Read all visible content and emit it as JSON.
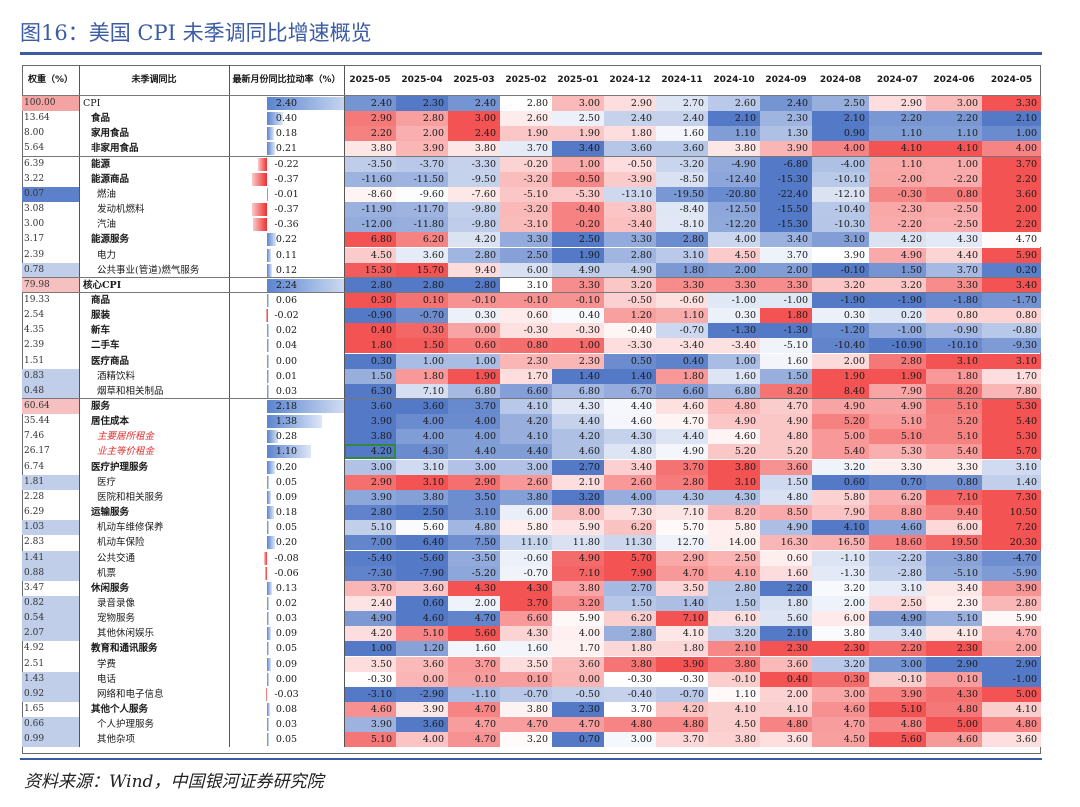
{
  "title": "图16：美国 CPI 未季调同比增速概览",
  "source": "资料来源：Wind，中国银河证券研究院",
  "colors": {
    "red": "#f24a4a",
    "blue": "#4a72c4",
    "bar_pos": "#5b84d0",
    "bar_neg": "#ef2f2f"
  },
  "chart_data": {
    "type": "table",
    "columns": [
      "权重（%）",
      "未季调同比",
      "最新月份同比拉动率（%）",
      "2025-05",
      "2025-04",
      "2025-03",
      "2025-02",
      "2025-01",
      "2024-12",
      "2024-11",
      "2024-10",
      "2024-09",
      "2024-08",
      "2024-07",
      "2024-06",
      "2024-05"
    ],
    "rows": [
      {
        "weight": "100.00",
        "name": "CPI",
        "level": 0,
        "bold": false,
        "contrib": "2.40",
        "values": [
          "2.40",
          "2.30",
          "2.40",
          "2.80",
          "3.00",
          "2.90",
          "2.70",
          "2.60",
          "2.40",
          "2.50",
          "2.90",
          "3.00",
          "3.30"
        ]
      },
      {
        "weight": "13.64",
        "name": "食品",
        "level": 1,
        "bold": true,
        "contrib": "0.40",
        "values": [
          "2.90",
          "2.80",
          "3.00",
          "2.60",
          "2.50",
          "2.40",
          "2.40",
          "2.10",
          "2.30",
          "2.10",
          "2.20",
          "2.20",
          "2.10"
        ]
      },
      {
        "weight": "8.00",
        "name": "家用食品",
        "level": 1,
        "bold": true,
        "contrib": "0.18",
        "values": [
          "2.20",
          "2.00",
          "2.40",
          "1.90",
          "1.90",
          "1.80",
          "1.60",
          "1.10",
          "1.30",
          "0.90",
          "1.10",
          "1.10",
          "1.00"
        ]
      },
      {
        "weight": "5.64",
        "name": "非家用食品",
        "level": 1,
        "bold": true,
        "contrib": "0.21",
        "values": [
          "3.80",
          "3.90",
          "3.80",
          "3.70",
          "3.40",
          "3.60",
          "3.60",
          "3.80",
          "3.90",
          "4.00",
          "4.10",
          "4.10",
          "4.00"
        ]
      },
      {
        "weight": "6.39",
        "name": "能源",
        "level": 1,
        "bold": true,
        "contrib": "-0.22",
        "values": [
          "-3.50",
          "-3.70",
          "-3.30",
          "-0.20",
          "1.00",
          "-0.50",
          "-3.20",
          "-4.90",
          "-6.80",
          "-4.00",
          "1.10",
          "1.00",
          "3.70"
        ]
      },
      {
        "weight": "3.22",
        "name": "能源商品",
        "level": 1,
        "bold": true,
        "contrib": "-0.37",
        "values": [
          "-11.60",
          "-11.50",
          "-9.50",
          "-3.20",
          "-0.50",
          "-3.90",
          "-8.50",
          "-12.40",
          "-15.30",
          "-10.10",
          "-2.00",
          "-2.20",
          "2.20"
        ]
      },
      {
        "weight": "0.07",
        "name": "燃油",
        "level": 2,
        "bold": false,
        "contrib": "-0.01",
        "values": [
          "-8.60",
          "-9.60",
          "-7.60",
          "-5.10",
          "-5.30",
          "-13.10",
          "-19.50",
          "-20.80",
          "-22.40",
          "-12.10",
          "-0.30",
          "0.80",
          "3.60"
        ]
      },
      {
        "weight": "3.08",
        "name": "发动机燃料",
        "level": 2,
        "bold": false,
        "contrib": "-0.37",
        "values": [
          "-11.90",
          "-11.70",
          "-9.80",
          "-3.20",
          "-0.40",
          "-3.80",
          "-8.40",
          "-12.50",
          "-15.50",
          "-10.40",
          "-2.30",
          "-2.50",
          "2.00"
        ]
      },
      {
        "weight": "3.00",
        "name": "汽油",
        "level": 2,
        "bold": false,
        "contrib": "-0.36",
        "values": [
          "-12.00",
          "-11.80",
          "-9.80",
          "-3.10",
          "-0.20",
          "-3.40",
          "-8.10",
          "-12.20",
          "-15.30",
          "-10.30",
          "-2.20",
          "-2.50",
          "2.20"
        ]
      },
      {
        "weight": "3.17",
        "name": "能源服务",
        "level": 1,
        "bold": true,
        "contrib": "0.22",
        "values": [
          "6.80",
          "6.20",
          "4.20",
          "3.30",
          "2.50",
          "3.30",
          "2.80",
          "4.00",
          "3.40",
          "3.10",
          "4.20",
          "4.30",
          "4.70"
        ]
      },
      {
        "weight": "2.39",
        "name": "电力",
        "level": 2,
        "bold": false,
        "contrib": "0.11",
        "values": [
          "4.50",
          "3.60",
          "2.80",
          "2.50",
          "1.90",
          "2.80",
          "3.10",
          "4.50",
          "3.70",
          "3.90",
          "4.90",
          "4.40",
          "5.90"
        ]
      },
      {
        "weight": "0.78",
        "name": "公共事业(管道)燃气服务",
        "level": 2,
        "bold": false,
        "contrib": "0.12",
        "values": [
          "15.30",
          "15.70",
          "9.40",
          "6.00",
          "4.90",
          "4.90",
          "1.80",
          "2.00",
          "2.00",
          "-0.10",
          "1.50",
          "3.70",
          "0.20"
        ]
      },
      {
        "weight": "79.98",
        "name": "核心CPI",
        "level": 0,
        "bold": true,
        "contrib": "2.24",
        "values": [
          "2.80",
          "2.80",
          "2.80",
          "3.10",
          "3.30",
          "3.20",
          "3.30",
          "3.30",
          "3.30",
          "3.20",
          "3.20",
          "3.30",
          "3.40"
        ]
      },
      {
        "weight": "19.33",
        "name": "商品",
        "level": 1,
        "bold": true,
        "contrib": "0.06",
        "values": [
          "0.30",
          "0.10",
          "-0.10",
          "-0.10",
          "-0.10",
          "-0.50",
          "-0.60",
          "-1.00",
          "-1.00",
          "-1.90",
          "-1.90",
          "-1.80",
          "-1.70"
        ]
      },
      {
        "weight": "2.54",
        "name": "服装",
        "level": 1,
        "bold": true,
        "contrib": "-0.02",
        "values": [
          "-0.90",
          "-0.70",
          "0.30",
          "0.60",
          "0.40",
          "1.20",
          "1.10",
          "0.30",
          "1.80",
          "0.30",
          "0.20",
          "0.80",
          "0.80"
        ]
      },
      {
        "weight": "4.35",
        "name": "新车",
        "level": 1,
        "bold": true,
        "contrib": "0.02",
        "values": [
          "0.40",
          "0.30",
          "0.00",
          "-0.30",
          "-0.30",
          "-0.40",
          "-0.70",
          "-1.30",
          "-1.30",
          "-1.20",
          "-1.00",
          "-0.90",
          "-0.80"
        ]
      },
      {
        "weight": "2.39",
        "name": "二手车",
        "level": 1,
        "bold": true,
        "contrib": "0.04",
        "values": [
          "1.80",
          "1.50",
          "0.60",
          "0.80",
          "1.00",
          "-3.30",
          "-3.40",
          "-3.40",
          "-5.10",
          "-10.40",
          "-10.90",
          "-10.10",
          "-9.30"
        ]
      },
      {
        "weight": "1.51",
        "name": "医疗商品",
        "level": 1,
        "bold": true,
        "contrib": "0.00",
        "values": [
          "0.30",
          "1.00",
          "1.00",
          "2.30",
          "2.30",
          "0.50",
          "0.40",
          "1.00",
          "1.60",
          "2.00",
          "2.80",
          "3.10",
          "3.10"
        ]
      },
      {
        "weight": "0.83",
        "name": "酒精饮料",
        "level": 2,
        "bold": false,
        "contrib": "0.01",
        "values": [
          "1.50",
          "1.80",
          "1.90",
          "1.70",
          "1.40",
          "1.40",
          "1.80",
          "1.60",
          "1.50",
          "1.90",
          "1.90",
          "1.80",
          "1.70"
        ]
      },
      {
        "weight": "0.48",
        "name": "烟草和相关制品",
        "level": 2,
        "bold": false,
        "contrib": "0.03",
        "values": [
          "6.30",
          "7.10",
          "6.80",
          "6.60",
          "6.80",
          "6.70",
          "6.60",
          "6.80",
          "8.20",
          "8.40",
          "7.90",
          "8.20",
          "7.80"
        ]
      },
      {
        "weight": "60.64",
        "name": "服务",
        "level": 1,
        "bold": true,
        "contrib": "2.18",
        "values": [
          "3.60",
          "3.60",
          "3.70",
          "4.10",
          "4.30",
          "4.40",
          "4.60",
          "4.80",
          "4.70",
          "4.90",
          "4.90",
          "5.10",
          "5.30"
        ]
      },
      {
        "weight": "35.44",
        "name": "居住成本",
        "level": 1,
        "bold": true,
        "contrib": "1.38",
        "values": [
          "3.90",
          "4.00",
          "4.00",
          "4.20",
          "4.40",
          "4.60",
          "4.70",
          "4.90",
          "4.90",
          "5.20",
          "5.10",
          "5.20",
          "5.40"
        ]
      },
      {
        "weight": "7.46",
        "name": "主要居所租金",
        "level": 2,
        "bold": false,
        "red": true,
        "contrib": "0.28",
        "values": [
          "3.80",
          "4.00",
          "4.00",
          "4.10",
          "4.20",
          "4.30",
          "4.40",
          "4.60",
          "4.80",
          "5.00",
          "5.10",
          "5.10",
          "5.30"
        ]
      },
      {
        "weight": "26.17",
        "name": "业主等价租金",
        "level": 2,
        "bold": false,
        "red": true,
        "contrib": "1.10",
        "values": [
          "4.20",
          "4.30",
          "4.40",
          "4.40",
          "4.60",
          "4.80",
          "4.90",
          "5.20",
          "5.20",
          "5.40",
          "5.30",
          "5.40",
          "5.70"
        ]
      },
      {
        "weight": "6.74",
        "name": "医疗护理服务",
        "level": 1,
        "bold": true,
        "contrib": "0.20",
        "values": [
          "3.00",
          "3.10",
          "3.00",
          "3.00",
          "2.70",
          "3.40",
          "3.70",
          "3.80",
          "3.60",
          "3.20",
          "3.30",
          "3.30",
          "3.10"
        ]
      },
      {
        "weight": "1.81",
        "name": "医疗",
        "level": 2,
        "bold": false,
        "contrib": "0.05",
        "values": [
          "2.90",
          "3.10",
          "2.90",
          "2.60",
          "2.10",
          "2.60",
          "2.80",
          "3.10",
          "1.50",
          "0.60",
          "0.70",
          "0.80",
          "1.40"
        ]
      },
      {
        "weight": "2.28",
        "name": "医院和相关服务",
        "level": 2,
        "bold": false,
        "contrib": "0.09",
        "values": [
          "3.90",
          "3.80",
          "3.50",
          "3.80",
          "3.20",
          "4.00",
          "4.30",
          "4.30",
          "4.80",
          "5.80",
          "6.20",
          "7.10",
          "7.30"
        ]
      },
      {
        "weight": "6.29",
        "name": "运输服务",
        "level": 1,
        "bold": true,
        "contrib": "0.18",
        "values": [
          "2.80",
          "2.50",
          "3.10",
          "6.00",
          "8.00",
          "7.30",
          "7.10",
          "8.20",
          "8.50",
          "7.90",
          "8.80",
          "9.40",
          "10.50"
        ]
      },
      {
        "weight": "1.03",
        "name": "机动车维修保养",
        "level": 2,
        "bold": false,
        "contrib": "0.05",
        "values": [
          "5.10",
          "5.60",
          "4.80",
          "5.80",
          "5.90",
          "6.20",
          "5.70",
          "5.80",
          "4.90",
          "4.10",
          "4.60",
          "6.00",
          "7.20"
        ]
      },
      {
        "weight": "2.83",
        "name": "机动车保险",
        "level": 2,
        "bold": false,
        "contrib": "0.20",
        "values": [
          "7.00",
          "6.40",
          "7.50",
          "11.10",
          "11.80",
          "11.30",
          "12.70",
          "14.00",
          "16.30",
          "16.50",
          "18.60",
          "19.50",
          "20.30"
        ]
      },
      {
        "weight": "1.41",
        "name": "公共交通",
        "level": 2,
        "bold": false,
        "contrib": "-0.08",
        "values": [
          "-5.40",
          "-5.60",
          "-3.50",
          "-0.60",
          "4.90",
          "5.70",
          "2.90",
          "2.50",
          "0.60",
          "-1.10",
          "-2.20",
          "-3.80",
          "-4.70"
        ]
      },
      {
        "weight": "0.88",
        "name": "机票",
        "level": 2,
        "bold": false,
        "contrib": "-0.06",
        "values": [
          "-7.30",
          "-7.90",
          "-5.20",
          "-0.70",
          "7.10",
          "7.90",
          "4.70",
          "4.10",
          "1.60",
          "-1.30",
          "-2.80",
          "-5.10",
          "-5.90"
        ]
      },
      {
        "weight": "3.47",
        "name": "休闲服务",
        "level": 1,
        "bold": true,
        "contrib": "0.13",
        "values": [
          "3.70",
          "3.60",
          "4.30",
          "4.30",
          "3.80",
          "2.70",
          "3.50",
          "2.80",
          "2.20",
          "3.20",
          "3.10",
          "3.40",
          "3.90"
        ]
      },
      {
        "weight": "0.82",
        "name": "录音录像",
        "level": 2,
        "bold": false,
        "contrib": "0.02",
        "values": [
          "2.40",
          "0.60",
          "2.00",
          "3.70",
          "3.20",
          "1.50",
          "1.40",
          "1.50",
          "1.80",
          "2.00",
          "2.50",
          "2.30",
          "2.80"
        ]
      },
      {
        "weight": "0.54",
        "name": "宠物服务",
        "level": 2,
        "bold": false,
        "contrib": "0.03",
        "values": [
          "4.90",
          "4.60",
          "4.70",
          "6.60",
          "5.90",
          "6.20",
          "7.10",
          "6.10",
          "5.60",
          "6.00",
          "4.90",
          "5.10",
          "5.90"
        ]
      },
      {
        "weight": "2.07",
        "name": "其他休闲娱乐",
        "level": 2,
        "bold": false,
        "contrib": "0.09",
        "values": [
          "4.20",
          "5.10",
          "5.60",
          "4.30",
          "4.00",
          "2.80",
          "4.10",
          "3.20",
          "2.10",
          "3.80",
          "3.40",
          "4.10",
          "4.70"
        ]
      },
      {
        "weight": "4.92",
        "name": "教育和通讯服务",
        "level": 1,
        "bold": true,
        "contrib": "0.05",
        "values": [
          "1.00",
          "1.20",
          "1.60",
          "1.60",
          "1.70",
          "1.80",
          "1.80",
          "2.10",
          "2.30",
          "2.30",
          "2.20",
          "2.30",
          "2.00"
        ]
      },
      {
        "weight": "2.51",
        "name": "学费",
        "level": 2,
        "bold": false,
        "contrib": "0.09",
        "values": [
          "3.50",
          "3.60",
          "3.70",
          "3.50",
          "3.60",
          "3.80",
          "3.90",
          "3.80",
          "3.60",
          "3.20",
          "3.00",
          "2.90",
          "2.90"
        ]
      },
      {
        "weight": "1.43",
        "name": "电话",
        "level": 2,
        "bold": false,
        "contrib": "0.00",
        "values": [
          "-0.30",
          "0.00",
          "0.10",
          "0.10",
          "0.00",
          "-0.30",
          "-0.30",
          "-0.10",
          "0.40",
          "0.30",
          "-0.10",
          "0.10",
          "-1.00"
        ]
      },
      {
        "weight": "0.92",
        "name": "网络和电子信息",
        "level": 2,
        "bold": false,
        "contrib": "-0.03",
        "values": [
          "-3.10",
          "-2.90",
          "-1.10",
          "-0.70",
          "-0.50",
          "-0.40",
          "-0.70",
          "1.10",
          "2.00",
          "3.00",
          "3.90",
          "4.30",
          "5.00"
        ]
      },
      {
        "weight": "1.65",
        "name": "其他个人服务",
        "level": 1,
        "bold": true,
        "contrib": "0.08",
        "values": [
          "4.60",
          "3.90",
          "4.70",
          "3.80",
          "2.30",
          "3.70",
          "4.20",
          "4.10",
          "4.10",
          "4.60",
          "5.10",
          "4.80",
          "4.10"
        ]
      },
      {
        "weight": "0.66",
        "name": "个人护理服务",
        "level": 2,
        "bold": false,
        "contrib": "0.03",
        "values": [
          "3.90",
          "3.60",
          "4.70",
          "4.70",
          "4.70",
          "4.80",
          "4.80",
          "4.50",
          "4.80",
          "4.70",
          "4.80",
          "5.00",
          "4.80"
        ]
      },
      {
        "weight": "0.99",
        "name": "其他杂项",
        "level": 2,
        "bold": false,
        "contrib": "0.05",
        "values": [
          "5.10",
          "4.00",
          "4.70",
          "3.20",
          "0.70",
          "3.00",
          "3.70",
          "3.80",
          "3.60",
          "4.50",
          "5.60",
          "4.60",
          "3.60"
        ]
      }
    ]
  }
}
